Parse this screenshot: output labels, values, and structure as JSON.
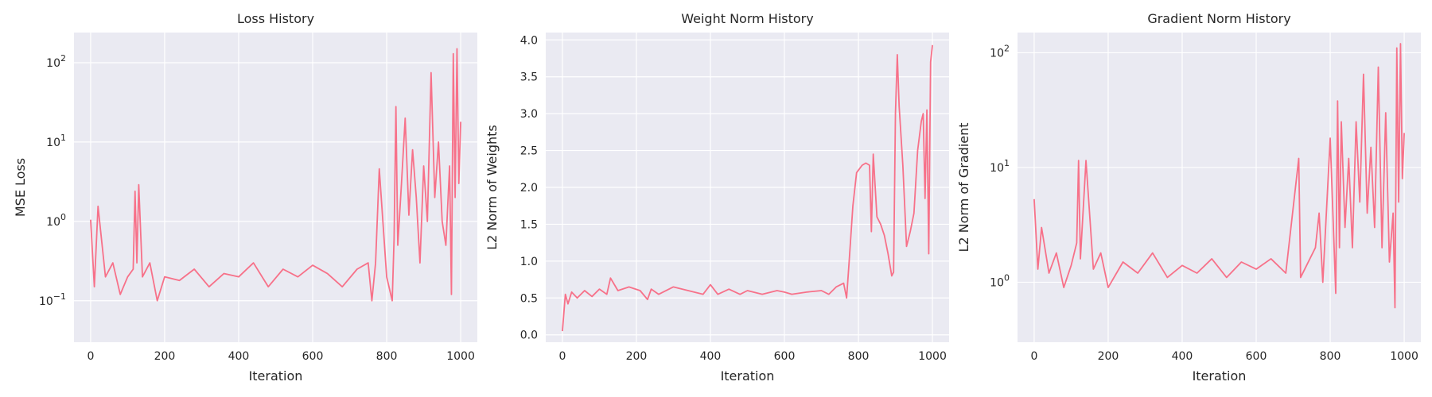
{
  "colors": {
    "series": "#f77189",
    "background": "#eaeaf2",
    "grid": "#ffffff"
  },
  "chart_data": [
    {
      "type": "line",
      "title": "Loss History",
      "xlabel": "Iteration",
      "ylabel": "MSE Loss",
      "yscale": "log",
      "grid": true,
      "xlim": [
        -45,
        1045
      ],
      "ylim": [
        0.03,
        240
      ],
      "xticks": [
        0,
        200,
        400,
        600,
        800,
        1000
      ],
      "yticks": [
        0.1,
        1,
        10,
        100
      ],
      "ytick_labels": [
        {
          "base": "10",
          "exp": "−1"
        },
        {
          "base": "10",
          "exp": "0"
        },
        {
          "base": "10",
          "exp": "1"
        },
        {
          "base": "10",
          "exp": "2"
        }
      ],
      "series": [
        {
          "x": [
            0,
            10,
            20,
            40,
            60,
            80,
            100,
            115,
            120,
            125,
            130,
            140,
            160,
            180,
            200,
            240,
            280,
            320,
            360,
            400,
            440,
            480,
            520,
            560,
            600,
            640,
            680,
            720,
            750,
            760,
            770,
            780,
            800,
            815,
            820,
            825,
            830,
            840,
            850,
            860,
            870,
            880,
            890,
            900,
            910,
            920,
            930,
            940,
            950,
            960,
            970,
            975,
            980,
            985,
            990,
            995,
            1000
          ],
          "y": [
            1.05,
            0.15,
            1.55,
            0.2,
            0.3,
            0.12,
            0.2,
            0.25,
            2.4,
            0.3,
            2.9,
            0.2,
            0.3,
            0.1,
            0.2,
            0.18,
            0.25,
            0.15,
            0.22,
            0.2,
            0.3,
            0.15,
            0.25,
            0.2,
            0.28,
            0.22,
            0.15,
            0.25,
            0.3,
            0.1,
            0.3,
            4.6,
            0.2,
            0.1,
            0.6,
            28,
            0.5,
            3,
            20,
            1.2,
            8,
            2,
            0.3,
            5,
            1,
            75,
            2,
            10,
            1,
            0.5,
            5,
            0.12,
            130,
            2,
            150,
            3,
            18
          ]
        }
      ]
    },
    {
      "type": "line",
      "title": "Weight Norm History",
      "xlabel": "Iteration",
      "ylabel": "L2 Norm of Weights",
      "yscale": "linear",
      "grid": true,
      "xlim": [
        -45,
        1045
      ],
      "ylim": [
        -0.1,
        4.1
      ],
      "xticks": [
        0,
        200,
        400,
        600,
        800,
        1000
      ],
      "yticks": [
        0.0,
        0.5,
        1.0,
        1.5,
        2.0,
        2.5,
        3.0,
        3.5,
        4.0
      ],
      "ytick_labels": [
        "0.0",
        "0.5",
        "1.0",
        "1.5",
        "2.0",
        "2.5",
        "3.0",
        "3.5",
        "4.0"
      ],
      "series": [
        {
          "x": [
            0,
            8,
            15,
            25,
            40,
            60,
            80,
            100,
            120,
            130,
            150,
            180,
            210,
            230,
            240,
            260,
            300,
            340,
            380,
            400,
            420,
            450,
            480,
            500,
            540,
            580,
            600,
            620,
            660,
            700,
            720,
            740,
            760,
            768,
            775,
            785,
            795,
            810,
            820,
            830,
            835,
            840,
            850,
            860,
            870,
            880,
            890,
            895,
            900,
            905,
            910,
            920,
            930,
            940,
            950,
            960,
            970,
            975,
            980,
            985,
            990,
            995,
            1000
          ],
          "y": [
            0.05,
            0.55,
            0.42,
            0.58,
            0.5,
            0.6,
            0.52,
            0.62,
            0.55,
            0.77,
            0.6,
            0.65,
            0.6,
            0.48,
            0.62,
            0.55,
            0.65,
            0.6,
            0.55,
            0.68,
            0.55,
            0.62,
            0.55,
            0.6,
            0.55,
            0.6,
            0.58,
            0.55,
            0.58,
            0.6,
            0.55,
            0.65,
            0.7,
            0.5,
            1.0,
            1.75,
            2.2,
            2.3,
            2.33,
            2.3,
            1.4,
            2.45,
            1.6,
            1.5,
            1.35,
            1.1,
            0.8,
            0.85,
            3.0,
            3.8,
            3.1,
            2.3,
            1.2,
            1.4,
            1.65,
            2.5,
            2.9,
            3.0,
            1.85,
            3.05,
            1.1,
            3.7,
            3.93
          ]
        }
      ]
    },
    {
      "type": "line",
      "title": "Gradient Norm History",
      "xlabel": "Iteration",
      "ylabel": "L2 Norm of Gradient",
      "yscale": "log",
      "grid": true,
      "xlim": [
        -45,
        1045
      ],
      "ylim": [
        0.3,
        150
      ],
      "xticks": [
        0,
        200,
        400,
        600,
        800,
        1000
      ],
      "yticks": [
        1,
        10,
        100
      ],
      "ytick_labels": [
        {
          "base": "10",
          "exp": "0"
        },
        {
          "base": "10",
          "exp": "1"
        },
        {
          "base": "10",
          "exp": "2"
        }
      ],
      "series": [
        {
          "x": [
            0,
            10,
            20,
            40,
            60,
            80,
            100,
            115,
            120,
            125,
            140,
            160,
            180,
            200,
            240,
            280,
            320,
            360,
            400,
            440,
            480,
            520,
            560,
            600,
            640,
            680,
            715,
            720,
            760,
            770,
            780,
            800,
            815,
            820,
            825,
            830,
            840,
            850,
            860,
            870,
            880,
            890,
            900,
            910,
            920,
            930,
            940,
            950,
            960,
            970,
            975,
            980,
            985,
            990,
            995,
            1000
          ],
          "y": [
            5.3,
            1.3,
            3.0,
            1.2,
            1.8,
            0.9,
            1.4,
            2.2,
            11.5,
            1.6,
            11.5,
            1.3,
            1.8,
            0.9,
            1.5,
            1.2,
            1.8,
            1.1,
            1.4,
            1.2,
            1.6,
            1.1,
            1.5,
            1.3,
            1.6,
            1.2,
            12,
            1.1,
            2.0,
            4,
            1.0,
            18,
            0.8,
            38,
            2,
            25,
            3,
            12,
            2,
            25,
            5,
            65,
            4,
            15,
            3,
            75,
            2,
            30,
            1.5,
            4,
            0.6,
            110,
            5,
            120,
            8,
            20
          ]
        }
      ]
    }
  ]
}
